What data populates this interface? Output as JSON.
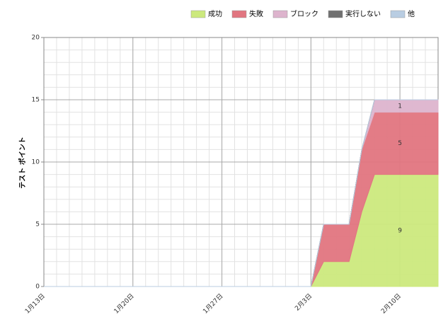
{
  "chart_data": {
    "type": "stacked-area",
    "y_label": "テスト ポイント",
    "categories": [
      "1月13日",
      null,
      null,
      null,
      null,
      null,
      null,
      "1月20日",
      null,
      null,
      null,
      null,
      null,
      null,
      "1月27日",
      null,
      null,
      null,
      null,
      null,
      null,
      "2月3日",
      null,
      null,
      null,
      null,
      null,
      null,
      "2月10日",
      null,
      null,
      null
    ],
    "series": [
      {
        "name": "成功",
        "color": "#cce97d",
        "values": [
          0,
          0,
          0,
          0,
          0,
          0,
          0,
          0,
          0,
          0,
          0,
          0,
          0,
          0,
          0,
          0,
          0,
          0,
          0,
          0,
          0,
          0,
          2,
          2,
          2,
          6,
          9,
          9,
          9,
          9,
          9,
          9
        ]
      },
      {
        "name": "失敗",
        "color": "#e17580",
        "values": [
          0,
          0,
          0,
          0,
          0,
          0,
          0,
          0,
          0,
          0,
          0,
          0,
          0,
          0,
          0,
          0,
          0,
          0,
          0,
          0,
          0,
          0,
          3,
          3,
          3,
          5,
          5,
          5,
          5,
          5,
          5,
          5
        ]
      },
      {
        "name": "ブロック",
        "color": "#ddb4cd",
        "values": [
          0,
          0,
          0,
          0,
          0,
          0,
          0,
          0,
          0,
          0,
          0,
          0,
          0,
          0,
          0,
          0,
          0,
          0,
          0,
          0,
          0,
          0,
          0,
          0,
          0,
          0,
          1,
          1,
          1,
          1,
          1,
          1
        ]
      },
      {
        "name": "実行しない",
        "color": "#707070",
        "values": [
          0,
          0,
          0,
          0,
          0,
          0,
          0,
          0,
          0,
          0,
          0,
          0,
          0,
          0,
          0,
          0,
          0,
          0,
          0,
          0,
          0,
          0,
          0,
          0,
          0,
          0,
          0,
          0,
          0,
          0,
          0,
          0
        ]
      },
      {
        "name": "他",
        "color": "#b9cde2",
        "values": [
          0,
          0,
          0,
          0,
          0,
          0,
          0,
          0,
          0,
          0,
          0,
          0,
          0,
          0,
          0,
          0,
          0,
          0,
          0,
          0,
          0,
          0,
          0,
          0,
          0,
          0,
          0,
          0,
          0,
          0,
          0,
          0
        ]
      }
    ],
    "labeled_index": 28,
    "ylim": [
      0,
      20
    ],
    "yticks": [
      0,
      5,
      10,
      15,
      20
    ],
    "grid": true,
    "legend": "top-right"
  }
}
